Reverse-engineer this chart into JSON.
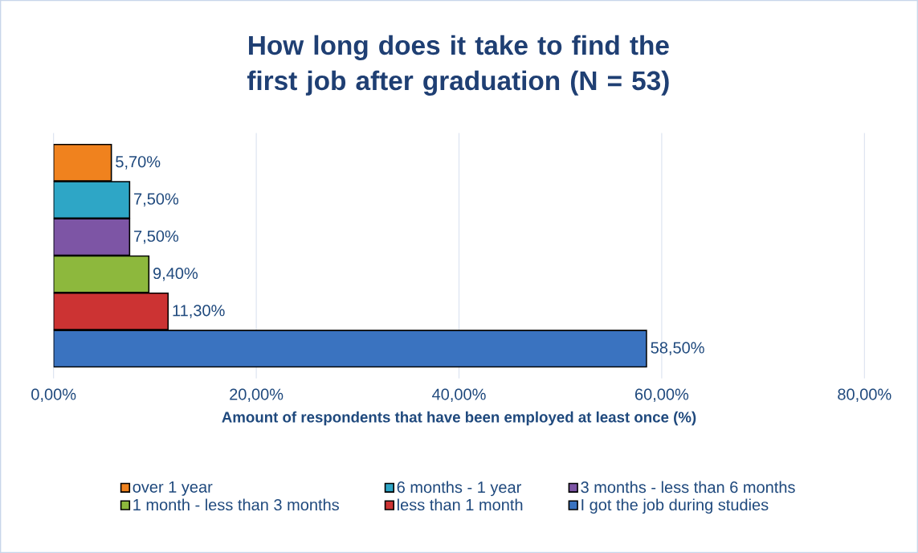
{
  "chart_data": {
    "type": "bar",
    "orientation": "horizontal",
    "title": "How long does it take to find the first job after graduation (N = 53)",
    "xlabel": "Amount of respondents that have been employed at least once (%)",
    "categories": [
      null
    ],
    "series": [
      {
        "name": "over 1 year",
        "color": "#f0821e",
        "values": [
          5.7
        ],
        "value_labels": [
          "5,70%"
        ]
      },
      {
        "name": "6 months - 1 year",
        "color": "#2ea6c6",
        "values": [
          7.5
        ],
        "value_labels": [
          "7,50%"
        ]
      },
      {
        "name": "3 months - less than 6 months",
        "color": "#7d55a5",
        "values": [
          7.5
        ],
        "value_labels": [
          "7,50%"
        ]
      },
      {
        "name": "1 month - less than 3 months",
        "color": "#8db83d",
        "values": [
          9.4
        ],
        "value_labels": [
          "9,40%"
        ]
      },
      {
        "name": "less than 1 month",
        "color": "#cc3333",
        "values": [
          11.3
        ],
        "value_labels": [
          "11,30%"
        ]
      },
      {
        "name": "I got the job during studies",
        "color": "#3a73c0",
        "values": [
          58.5
        ],
        "value_labels": [
          "58,50%"
        ]
      }
    ],
    "xlim": [
      0,
      80
    ],
    "xticks": [
      {
        "value": 0,
        "label": "0,00%"
      },
      {
        "value": 20,
        "label": "20,00%"
      },
      {
        "value": 40,
        "label": "40,00%"
      },
      {
        "value": 60,
        "label": "60,00%"
      },
      {
        "value": 80,
        "label": "80,00%"
      }
    ],
    "grid": "x",
    "legend": "bottom"
  }
}
